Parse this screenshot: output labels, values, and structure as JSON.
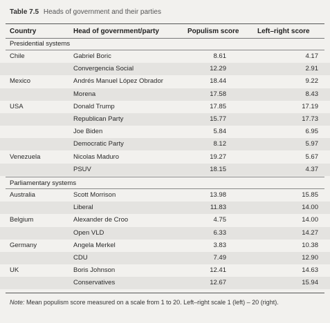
{
  "caption": {
    "number": "Table 7.5",
    "title": "Heads of government and their parties"
  },
  "columns": {
    "country": "Country",
    "head": "Head of government/party",
    "populism": "Populism score",
    "left_right": "Left–right score"
  },
  "sections": {
    "presidential": "Presidential systems",
    "parliamentary": "Parliamentary systems"
  },
  "rows": [
    {
      "country": "Chile",
      "head": "Gabriel Boric",
      "pop": "8.61",
      "lr": "4.17"
    },
    {
      "country": "",
      "head": "Convergencia Social",
      "pop": "12.29",
      "lr": "2.91"
    },
    {
      "country": "Mexico",
      "head": "Andrés Manuel López Obrador",
      "pop": "18.44",
      "lr": "9.22"
    },
    {
      "country": "",
      "head": "Morena",
      "pop": "17.58",
      "lr": "8.43"
    },
    {
      "country": "USA",
      "head": "Donald Trump",
      "pop": "17.85",
      "lr": "17.19"
    },
    {
      "country": "",
      "head": "Republican Party",
      "pop": "15.77",
      "lr": "17.73"
    },
    {
      "country": "",
      "head": "Joe Biden",
      "pop": "5.84",
      "lr": "6.95"
    },
    {
      "country": "",
      "head": "Democratic Party",
      "pop": "8.12",
      "lr": "5.97"
    },
    {
      "country": "Venezuela",
      "head": "Nicolas Maduro",
      "pop": "19.27",
      "lr": "5.67"
    },
    {
      "country": "",
      "head": "PSUV",
      "pop": "18.15",
      "lr": "4.37"
    },
    {
      "country": "Australia",
      "head": "Scott Morrison",
      "pop": "13.98",
      "lr": "15.85"
    },
    {
      "country": "",
      "head": "Liberal",
      "pop": "11.83",
      "lr": "14.00"
    },
    {
      "country": "Belgium",
      "head": "Alexander de Croo",
      "pop": "4.75",
      "lr": "14.00"
    },
    {
      "country": "",
      "head": "Open VLD",
      "pop": "6.33",
      "lr": "14.27"
    },
    {
      "country": "Germany",
      "head": "Angela Merkel",
      "pop": "3.83",
      "lr": "10.38"
    },
    {
      "country": "",
      "head": "CDU",
      "pop": "7.49",
      "lr": "12.90"
    },
    {
      "country": "UK",
      "head": "Boris Johnson",
      "pop": "12.41",
      "lr": "14.63"
    },
    {
      "country": "",
      "head": "Conservatives",
      "pop": "12.67",
      "lr": "15.94"
    }
  ],
  "note": {
    "label": "Note:",
    "text": " Mean populism score measured on a scale from 1 to 20. Left–right scale 1 (left) – 20 (right)."
  }
}
